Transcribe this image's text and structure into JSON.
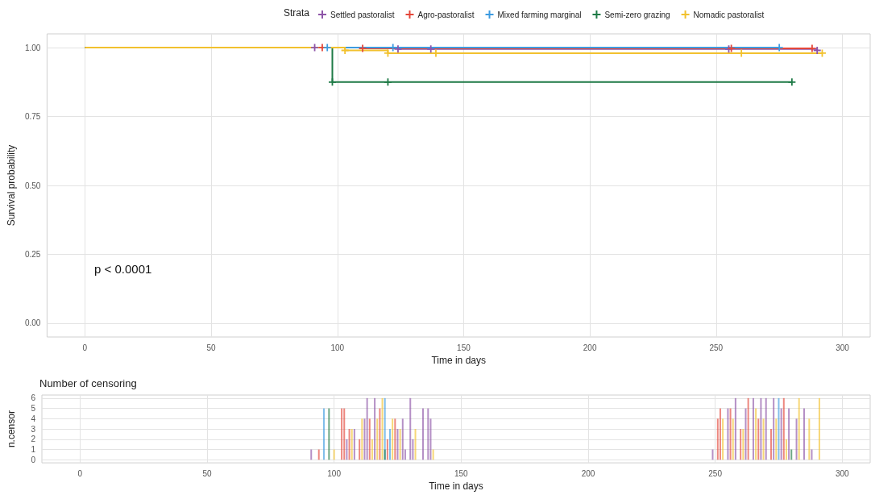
{
  "chart_data": [
    {
      "type": "step",
      "legend_title": "Strata",
      "legend": "top",
      "xlabel": "Time in days",
      "ylabel": "Survival probability",
      "annotations": [
        "p < 0.0001"
      ],
      "marker": "cross",
      "grid": true,
      "xlim": [
        -15,
        311
      ],
      "xticks": [
        0,
        50,
        100,
        150,
        200,
        250,
        300
      ],
      "ylim": [
        -0.05,
        1.05
      ],
      "yticks": [
        {
          "value": 0,
          "label": "0.00"
        },
        {
          "value": 0.25,
          "label": "0.25"
        },
        {
          "value": 0.5,
          "label": "0.50"
        },
        {
          "value": 0.75,
          "label": "0.75"
        },
        {
          "value": 1,
          "label": "1.00"
        }
      ],
      "series": [
        {
          "name": "Settled pastoralist",
          "color": "#8e55a8",
          "x": [
            0,
            91,
            124,
            137,
            255,
            290
          ],
          "values": [
            1,
            1,
            0.995,
            0.995,
            0.995,
            0.99
          ]
        },
        {
          "name": "Agro-pastoralist",
          "color": "#e4473a",
          "x": [
            0,
            94,
            110,
            256,
            288
          ],
          "values": [
            1,
            1,
            0.997,
            0.997,
            0.997
          ]
        },
        {
          "name": "Mixed farming marginal",
          "color": "#3d9be0",
          "x": [
            0,
            96,
            122,
            275
          ],
          "values": [
            1,
            1,
            1,
            1
          ]
        },
        {
          "name": "Semi-zero grazing",
          "color": "#1e7a46",
          "x": [
            0,
            98,
            120,
            280
          ],
          "values": [
            1,
            0.875,
            0.875,
            0.875
          ]
        },
        {
          "name": "Nomadic pastoralist",
          "color": "#f2c12e",
          "x": [
            0,
            103,
            120,
            139,
            260,
            292
          ],
          "values": [
            1,
            0.99,
            0.98,
            0.98,
            0.98,
            0.98
          ]
        }
      ]
    },
    {
      "type": "bar",
      "title": "Number of censoring",
      "xlabel": "Time in days",
      "ylabel": "n.censor",
      "grid": true,
      "xlim": [
        -15,
        311
      ],
      "xticks": [
        0,
        50,
        100,
        150,
        200,
        250,
        300
      ],
      "ylim": [
        -0.3,
        6.3
      ],
      "yticks": [
        0,
        1,
        2,
        3,
        4,
        5,
        6
      ],
      "series": [
        {
          "color": "#8e55a8",
          "x": [
            91,
            105,
            108,
            112,
            113,
            116,
            125,
            127,
            128,
            130,
            131,
            135,
            137,
            138,
            249,
            255,
            258,
            262,
            265,
            268,
            270,
            273,
            276,
            279,
            282,
            285,
            288
          ],
          "values": [
            1,
            2,
            3,
            4,
            6,
            6,
            3,
            4,
            1,
            6,
            2,
            5,
            5,
            4,
            1,
            5,
            6,
            5,
            6,
            6,
            6,
            6,
            5,
            5,
            4,
            5,
            1
          ]
        },
        {
          "color": "#e4473a",
          "x": [
            94,
            103,
            104,
            106,
            110,
            114,
            118,
            121,
            124,
            251,
            252,
            256,
            260,
            263,
            267,
            272,
            277
          ],
          "values": [
            1,
            5,
            5,
            3,
            2,
            4,
            5,
            2,
            4,
            4,
            5,
            5,
            3,
            6,
            4,
            3,
            6
          ]
        },
        {
          "color": "#3d9be0",
          "x": [
            96,
            120,
            122,
            275
          ],
          "values": [
            5,
            6,
            3,
            6
          ]
        },
        {
          "color": "#1e7a46",
          "x": [
            98,
            120,
            280
          ],
          "values": [
            5,
            1,
            1
          ]
        },
        {
          "color": "#f2c12e",
          "x": [
            100,
            107,
            111,
            115,
            117,
            119,
            123,
            126,
            132,
            139,
            253,
            257,
            261,
            266,
            269,
            274,
            278,
            283,
            287,
            291
          ],
          "values": [
            1,
            3,
            4,
            2,
            4,
            6,
            4,
            3,
            3,
            1,
            4,
            4,
            3,
            5,
            4,
            4,
            2,
            6,
            4,
            6
          ]
        }
      ]
    }
  ]
}
